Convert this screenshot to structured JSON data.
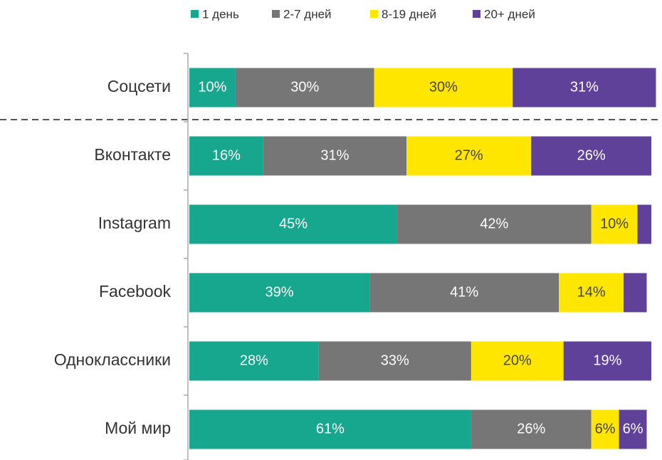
{
  "chart_data": {
    "type": "stacked-bar-horizontal",
    "categories": [
      "Соцсети",
      "Вконтакте",
      "Instagram",
      "Facebook",
      "Одноклассники",
      "Мой мир"
    ],
    "xlim": [
      0,
      100
    ],
    "series": [
      {
        "name": "1 день",
        "color": "#17a68e",
        "values": [
          10,
          16,
          45,
          39,
          28,
          61
        ],
        "value_labels": [
          "10%",
          "16%",
          "45%",
          "39%",
          "28%",
          "61%"
        ]
      },
      {
        "name": "2-7 дней",
        "color": "#767676",
        "values": [
          30,
          31,
          42,
          41,
          33,
          26
        ],
        "value_labels": [
          "30%",
          "31%",
          "42%",
          "41%",
          "33%",
          "26%"
        ]
      },
      {
        "name": "8-19 дней",
        "color": "#ffe600",
        "values": [
          30,
          27,
          10,
          14,
          20,
          6
        ],
        "value_labels": [
          "30%",
          "27%",
          "10%",
          "14%",
          "20%",
          "6%"
        ]
      },
      {
        "name": "20+ дней",
        "color": "#60419a",
        "values": [
          31,
          26,
          3,
          5,
          19,
          6
        ],
        "value_labels": [
          "31%",
          "26%",
          null,
          null,
          "19%",
          "6%"
        ]
      }
    ]
  }
}
